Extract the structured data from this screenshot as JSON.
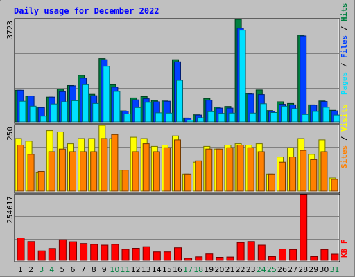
{
  "chart_data": [
    {
      "type": "bar",
      "title": "Daily usage for December 2022",
      "ymax_label": "3723",
      "ymax": 3723,
      "categories": [
        "1",
        "2",
        "3",
        "4",
        "5",
        "6",
        "7",
        "8",
        "9",
        "10",
        "11",
        "12",
        "13",
        "14",
        "15",
        "16",
        "17",
        "18",
        "19",
        "20",
        "21",
        "22",
        "23",
        "24",
        "25",
        "26",
        "27",
        "28",
        "29",
        "30",
        "31"
      ],
      "weekend_days": [
        "3",
        "4",
        "10",
        "11",
        "17",
        "18",
        "24",
        "25",
        "31"
      ],
      "legend": [
        "Hits",
        "Files",
        "Pages"
      ],
      "series": [
        {
          "name": "Hits",
          "color": "#008040",
          "values": [
            1150,
            930,
            540,
            900,
            1190,
            1320,
            1690,
            1000,
            2300,
            1350,
            400,
            870,
            920,
            780,
            760,
            2260,
            140,
            260,
            850,
            540,
            560,
            3723,
            1030,
            1160,
            410,
            730,
            670,
            3150,
            620,
            760,
            420
          ]
        },
        {
          "name": "Files",
          "color": "#0040ff",
          "values": [
            1150,
            940,
            520,
            900,
            1100,
            1310,
            1590,
            950,
            2260,
            1260,
            390,
            800,
            840,
            730,
            750,
            2180,
            130,
            250,
            790,
            500,
            500,
            3400,
            1010,
            990,
            380,
            640,
            620,
            3120,
            610,
            740,
            400
          ]
        },
        {
          "name": "Pages",
          "color": "#00e0ff",
          "values": [
            750,
            570,
            210,
            650,
            730,
            770,
            1350,
            670,
            2020,
            1110,
            290,
            520,
            710,
            330,
            320,
            1510,
            60,
            150,
            370,
            310,
            320,
            3330,
            320,
            660,
            340,
            570,
            480,
            270,
            380,
            530,
            250
          ]
        }
      ]
    },
    {
      "type": "bar",
      "ymax_label": "250",
      "ymax": 250,
      "legend": [
        "Visits",
        "Sites"
      ],
      "series": [
        {
          "name": "Visits",
          "color": "#ffff00",
          "values": [
            200,
            190,
            70,
            230,
            225,
            180,
            200,
            200,
            250,
            200,
            80,
            205,
            200,
            170,
            175,
            210,
            65,
            110,
            170,
            160,
            175,
            180,
            175,
            180,
            65,
            130,
            165,
            200,
            140,
            195,
            50
          ]
        },
        {
          "name": "Sites",
          "color": "#ff8000",
          "values": [
            175,
            140,
            75,
            150,
            160,
            150,
            150,
            150,
            200,
            215,
            80,
            150,
            180,
            150,
            165,
            195,
            65,
            115,
            160,
            160,
            165,
            175,
            165,
            150,
            65,
            110,
            130,
            155,
            120,
            150,
            45
          ]
        }
      ]
    },
    {
      "type": "bar",
      "ymax_label": "254617",
      "ymax": 254617,
      "legend": [
        "KB F"
      ],
      "series": [
        {
          "name": "KB F",
          "color": "#ff0000",
          "values": [
            87000,
            73000,
            37000,
            46000,
            80000,
            72000,
            65000,
            62000,
            59000,
            62000,
            43000,
            47000,
            53000,
            33000,
            33000,
            49000,
            8000,
            14000,
            25000,
            12000,
            13000,
            69000,
            73000,
            59000,
            15000,
            44000,
            42000,
            254617,
            15000,
            42000,
            24000
          ]
        }
      ]
    }
  ]
}
